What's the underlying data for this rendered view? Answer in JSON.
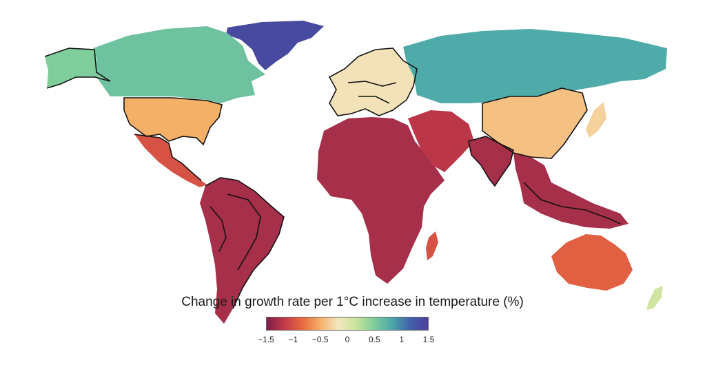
{
  "figure": {
    "legend_title": "Change in growth rate per 1°C increase in temperature (%)"
  },
  "legend": {
    "ticks": [
      "−1.5",
      "−1",
      "−0.5",
      "0",
      "0.5",
      "1",
      "1.5"
    ],
    "tick_values": [
      -1.5,
      -1,
      -0.5,
      0,
      0.5,
      1,
      1.5
    ],
    "range": [
      -1.5,
      1.5
    ],
    "colors": [
      "#7b1e4a",
      "#c23a48",
      "#e8693f",
      "#f5b068",
      "#f3e7c0",
      "#c9e49a",
      "#7fcd9b",
      "#4aa7aa",
      "#4162ad",
      "#4b3f99"
    ]
  },
  "regions": [
    {
      "icon": "greenland-shape",
      "value": 1.4
    },
    {
      "icon": "canada-shape",
      "value": 0.6
    },
    {
      "icon": "alaska-shape",
      "value": 0.5
    },
    {
      "icon": "usa-shape",
      "value": -0.5
    },
    {
      "icon": "mexico-shape",
      "value": -1.0
    },
    {
      "icon": "south-america-shape",
      "value": -1.3
    },
    {
      "icon": "europe-shape",
      "value": -0.2
    },
    {
      "icon": "africa-shape",
      "value": -1.3
    },
    {
      "icon": "middle-east-shape",
      "value": -1.2
    },
    {
      "icon": "russia-shape",
      "value": 0.8
    },
    {
      "icon": "china-shape",
      "value": -0.4
    },
    {
      "icon": "india-shape",
      "value": -1.3
    },
    {
      "icon": "southeast-asia-shape",
      "value": -1.3
    },
    {
      "icon": "australia-shape",
      "value": -0.9
    },
    {
      "icon": "japan-shape",
      "value": -0.3
    },
    {
      "icon": "madagascar-shape",
      "value": -1.0
    },
    {
      "icon": "new-zealand-shape",
      "value": 0.1
    }
  ]
}
